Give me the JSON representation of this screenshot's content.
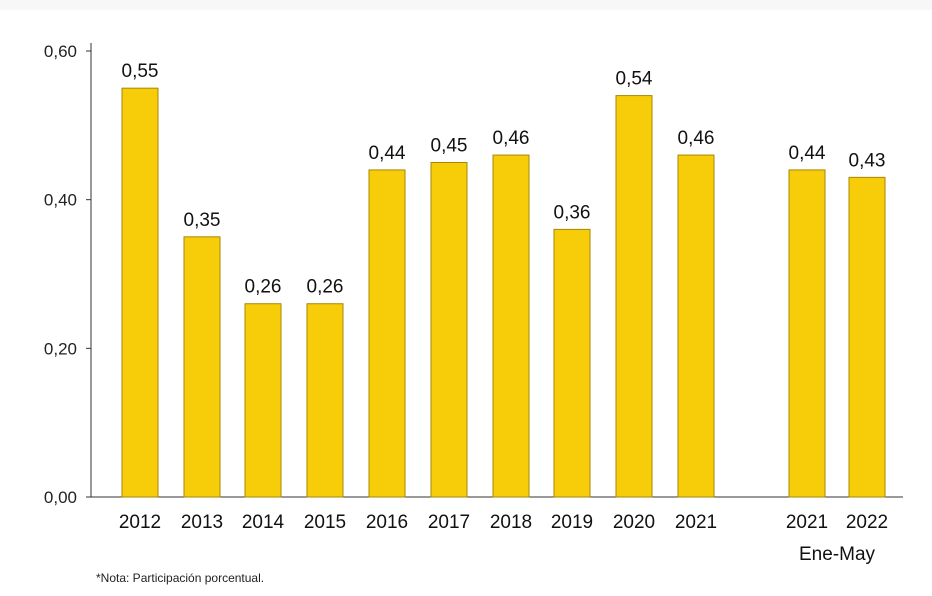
{
  "chart_data": {
    "type": "bar",
    "categories": [
      "2012",
      "2013",
      "2014",
      "2015",
      "2016",
      "2017",
      "2018",
      "2019",
      "2020",
      "2021",
      "2021",
      "2022"
    ],
    "values": [
      0.55,
      0.35,
      0.26,
      0.26,
      0.44,
      0.45,
      0.46,
      0.36,
      0.54,
      0.46,
      0.44,
      0.43
    ],
    "value_labels": [
      "0,55",
      "0,35",
      "0,26",
      "0,26",
      "0,44",
      "0,45",
      "0,46",
      "0,36",
      "0,54",
      "0,46",
      "0,44",
      "0,43"
    ],
    "group_label": "Ene-May",
    "ylim": [
      0,
      0.6
    ],
    "yticks": [
      0,
      0.2,
      0.4,
      0.6
    ],
    "ytick_labels": [
      "0,00",
      "0,20",
      "0,40",
      "0,60"
    ],
    "bar_color": "#F7CD0A",
    "bar_edge_color": "#A88700",
    "grid": false,
    "title": "",
    "xlabel": "",
    "ylabel": ""
  },
  "note": "*Nota: Participación porcentual."
}
